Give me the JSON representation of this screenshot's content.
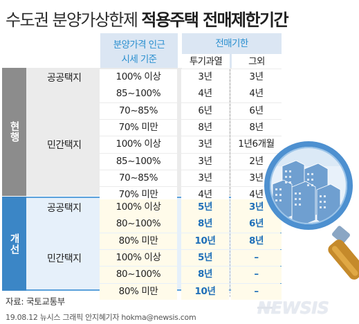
{
  "title": {
    "normal": "수도권 분양가상한제",
    "bold": "적용주택 전매제한기간"
  },
  "header": {
    "price_ratio": "분양가격 인근 시세 기준",
    "price_ratio_line1": "분양가격 인근",
    "price_ratio_line2": "시세 기준",
    "resale_period": "전매기한",
    "overheated": "투기과열",
    "other": "그외"
  },
  "sections": [
    {
      "label": "현행",
      "groups": [
        {
          "name": "공공택지",
          "rows": [
            {
              "ratio": "100% 이상",
              "overheated": "3년",
              "other": "3년"
            },
            {
              "ratio": "85~100%",
              "overheated": "4년",
              "other": "4년"
            },
            {
              "ratio": "70~85%",
              "overheated": "6년",
              "other": "6년"
            },
            {
              "ratio": "70% 미만",
              "overheated": "8년",
              "other": "8년"
            }
          ]
        },
        {
          "name": "민간택지",
          "rows": [
            {
              "ratio": "100% 이상",
              "overheated": "3년",
              "other": "1년6개월"
            },
            {
              "ratio": "85~100%",
              "overheated": "3년",
              "other": "2년"
            },
            {
              "ratio": "70~85%",
              "overheated": "3년",
              "other": "3년"
            },
            {
              "ratio": "70% 미만",
              "overheated": "4년",
              "other": "4년"
            }
          ]
        }
      ]
    },
    {
      "label": "개선",
      "groups": [
        {
          "name": "공공택지",
          "rows": [
            {
              "ratio": "100% 이상",
              "overheated": "5년",
              "other": "3년"
            },
            {
              "ratio": "80~100%",
              "overheated": "8년",
              "other": "6년"
            },
            {
              "ratio": "80% 미만",
              "overheated": "10년",
              "other": "8년"
            }
          ]
        },
        {
          "name": "민간택지",
          "rows": [
            {
              "ratio": "100% 이상",
              "overheated": "5년",
              "other": "–"
            },
            {
              "ratio": "80~100%",
              "overheated": "8년",
              "other": "–"
            },
            {
              "ratio": "80% 미만",
              "overheated": "10년",
              "other": "–"
            }
          ]
        }
      ]
    }
  ],
  "source": "자료: 국토교통부",
  "credit": "19.08.12 뉴시스 그래픽 안지혜기자 hokma@newsis.com",
  "logo": "NEWSIS",
  "colors": {
    "current_side": "#8c8c8c",
    "improved_side": "#3b86c6",
    "header_bg": "#dbe6f3",
    "header_text": "#2a8fcf",
    "improved_bg": "#e6f0fa",
    "improved_cell": "#fffbea",
    "improved_value": "#1f6fb8",
    "magnifier_rim": "#4d90d0",
    "handle": "#c58a2b"
  },
  "icons": [
    "magnifier-icon",
    "apartment-buildings-icon"
  ]
}
